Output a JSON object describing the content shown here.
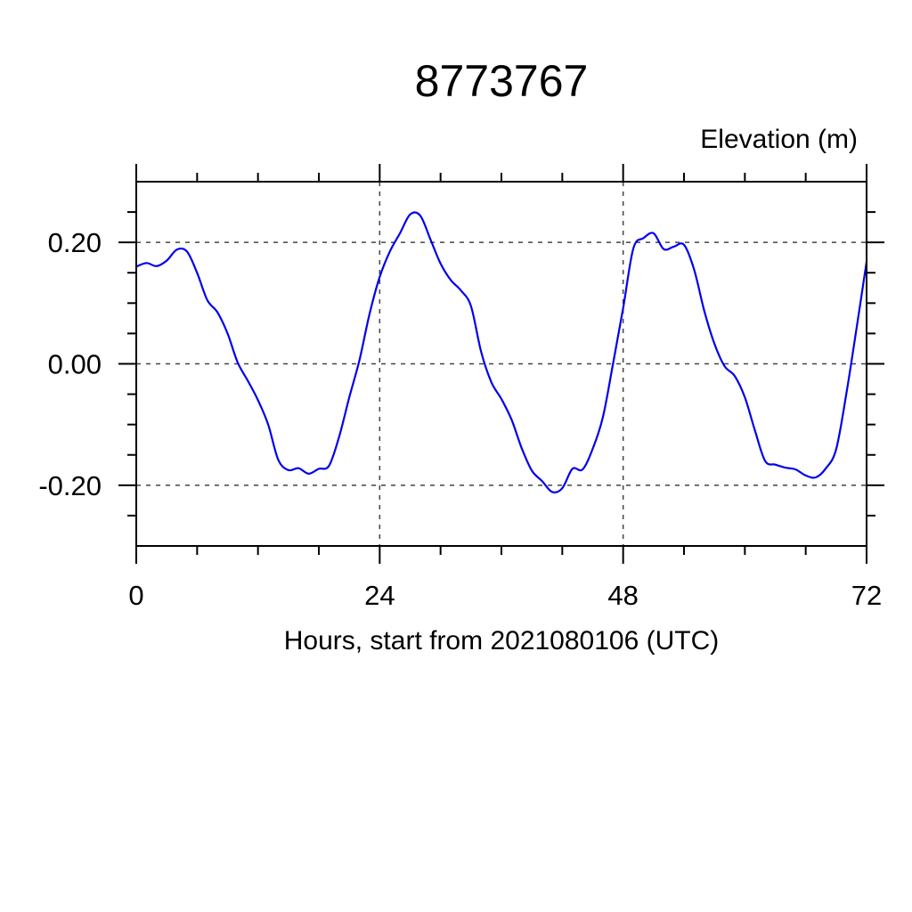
{
  "chart_data": {
    "type": "line",
    "title": "8773767",
    "right_label": "Elevation (m)",
    "xlabel": "Hours, start from 2021080106 (UTC)",
    "ylabel": "",
    "xlim": [
      0,
      72
    ],
    "ylim": [
      -0.3,
      0.3
    ],
    "xticks": [
      0,
      24,
      48,
      72
    ],
    "xticklabels": [
      "0",
      "24",
      "48",
      "72"
    ],
    "yticks": [
      0.2,
      0.0,
      -0.2
    ],
    "yticklabels": [
      "0.20",
      "0.00",
      "-0.20"
    ],
    "minor_x_step": 6,
    "minor_y_step": 0.05,
    "grid_x": [
      24,
      48,
      72
    ],
    "grid_y": [
      0.2,
      0.0,
      -0.2
    ],
    "grid_style": "dashed",
    "legend": "none",
    "frame_color": "#000000",
    "grid_color": "#444444",
    "series": [
      {
        "name": "elevation",
        "color": "#0000ee",
        "x": [
          0,
          1,
          2,
          3,
          4,
          5,
          6,
          7,
          8,
          9,
          10,
          11,
          12,
          13,
          14,
          15,
          16,
          17,
          18,
          19,
          20,
          21,
          22,
          23,
          24,
          25,
          26,
          27,
          28,
          29,
          30,
          31,
          32,
          33,
          34,
          35,
          36,
          37,
          38,
          39,
          40,
          41,
          42,
          43,
          44,
          45,
          46,
          47,
          48,
          49,
          50,
          51,
          52,
          53,
          54,
          55,
          56,
          57,
          58,
          59,
          60,
          61,
          62,
          63,
          64,
          65,
          66,
          67,
          68,
          69,
          70,
          71,
          72
        ],
        "values": [
          0.16,
          0.166,
          0.161,
          0.17,
          0.188,
          0.185,
          0.15,
          0.105,
          0.085,
          0.05,
          0.002,
          -0.028,
          -0.06,
          -0.1,
          -0.158,
          -0.175,
          -0.172,
          -0.181,
          -0.173,
          -0.168,
          -0.12,
          -0.055,
          0.006,
          0.082,
          0.143,
          0.185,
          0.215,
          0.246,
          0.244,
          0.205,
          0.165,
          0.138,
          0.121,
          0.095,
          0.02,
          -0.03,
          -0.058,
          -0.092,
          -0.139,
          -0.176,
          -0.193,
          -0.211,
          -0.205,
          -0.173,
          -0.174,
          -0.14,
          -0.088,
          0.0,
          0.092,
          0.19,
          0.207,
          0.215,
          0.189,
          0.193,
          0.196,
          0.155,
          0.087,
          0.033,
          -0.004,
          -0.02,
          -0.055,
          -0.11,
          -0.16,
          -0.166,
          -0.171,
          -0.174,
          -0.184,
          -0.187,
          -0.172,
          -0.141,
          -0.05,
          0.057,
          0.168
        ]
      }
    ]
  }
}
